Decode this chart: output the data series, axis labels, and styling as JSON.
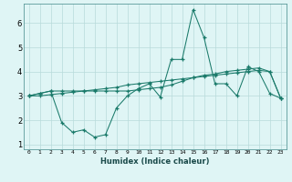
{
  "xlabel": "Humidex (Indice chaleur)",
  "x": [
    0,
    1,
    2,
    3,
    4,
    5,
    6,
    7,
    8,
    9,
    10,
    11,
    12,
    13,
    14,
    15,
    16,
    17,
    18,
    19,
    20,
    21,
    22,
    23
  ],
  "line1": [
    3.0,
    3.1,
    3.2,
    1.9,
    1.5,
    1.6,
    1.3,
    1.4,
    2.5,
    3.0,
    3.3,
    3.5,
    2.95,
    4.5,
    4.5,
    6.55,
    5.4,
    3.5,
    3.5,
    3.0,
    4.2,
    4.0,
    3.1,
    2.9
  ],
  "line2": [
    3.0,
    3.1,
    3.2,
    3.2,
    3.2,
    3.2,
    3.2,
    3.2,
    3.2,
    3.2,
    3.25,
    3.3,
    3.35,
    3.45,
    3.6,
    3.75,
    3.85,
    3.9,
    4.0,
    4.05,
    4.1,
    4.15,
    4.0,
    2.9
  ],
  "line3": [
    3.0,
    3.0,
    3.05,
    3.1,
    3.15,
    3.2,
    3.25,
    3.3,
    3.35,
    3.45,
    3.5,
    3.55,
    3.6,
    3.65,
    3.7,
    3.75,
    3.8,
    3.85,
    3.9,
    3.95,
    4.0,
    4.05,
    4.0,
    2.9
  ],
  "line_color": "#1a7a6a",
  "bg_color": "#dff5f5",
  "grid_color": "#b8dada",
  "ylim": [
    0.8,
    6.8
  ],
  "xlim": [
    -0.5,
    23.5
  ],
  "yticks": [
    1,
    2,
    3,
    4,
    5,
    6
  ],
  "xticks": [
    0,
    1,
    2,
    3,
    4,
    5,
    6,
    7,
    8,
    9,
    10,
    11,
    12,
    13,
    14,
    15,
    16,
    17,
    18,
    19,
    20,
    21,
    22,
    23
  ]
}
